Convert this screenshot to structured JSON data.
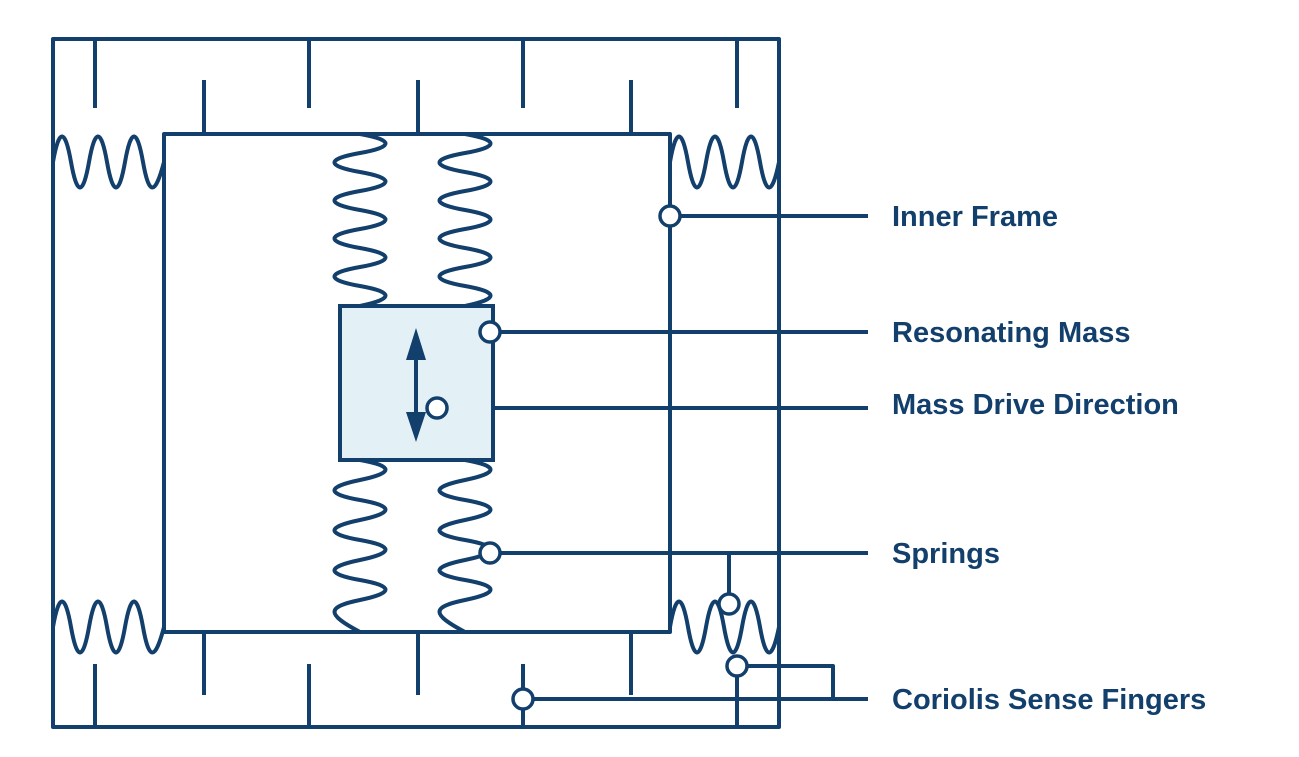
{
  "diagram": {
    "colors": {
      "line": "#123f6b",
      "mass_fill": "#e3f1f6",
      "background": "#ffffff"
    },
    "labels": {
      "inner_frame": "Inner Frame",
      "resonating_mass": "Resonating Mass",
      "mass_drive_direction": "Mass Drive Direction",
      "springs": "Springs",
      "coriolis_sense_fingers": "Coriolis Sense Fingers"
    }
  }
}
